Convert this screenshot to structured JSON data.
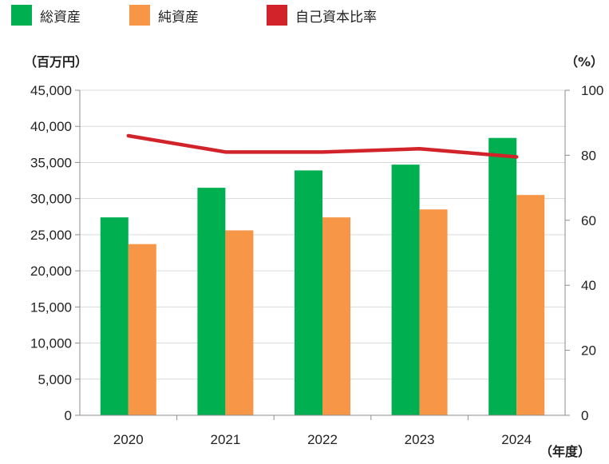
{
  "chart_data": {
    "type": "bar",
    "categories": [
      "2020",
      "2021",
      "2022",
      "2023",
      "2024"
    ],
    "series": [
      {
        "name": "総資産",
        "kind": "bar",
        "axis": "left",
        "color": "#00b050",
        "values": [
          27400,
          31500,
          33900,
          34700,
          38400
        ]
      },
      {
        "name": "純資産",
        "kind": "bar",
        "axis": "left",
        "color": "#f79646",
        "values": [
          23700,
          25600,
          27400,
          28500,
          30500
        ]
      },
      {
        "name": "自己資本比率",
        "kind": "line",
        "axis": "right",
        "color": "#d2232a",
        "values": [
          86,
          81,
          81,
          82,
          79.5
        ]
      }
    ],
    "left_axis": {
      "unit_label": "（百万円）",
      "ylim": [
        0,
        45000
      ],
      "ticks": [
        "0",
        "5,000",
        "10,000",
        "15,000",
        "20,000",
        "25,000",
        "30,000",
        "35,000",
        "40,000",
        "45,000"
      ]
    },
    "right_axis": {
      "unit_label": "（%）",
      "ylim": [
        0,
        100
      ],
      "ticks": [
        "0",
        "20",
        "40",
        "60",
        "80",
        "100"
      ]
    },
    "x_unit_label": "（年度）",
    "grid": true,
    "legend_position": "top-left"
  }
}
